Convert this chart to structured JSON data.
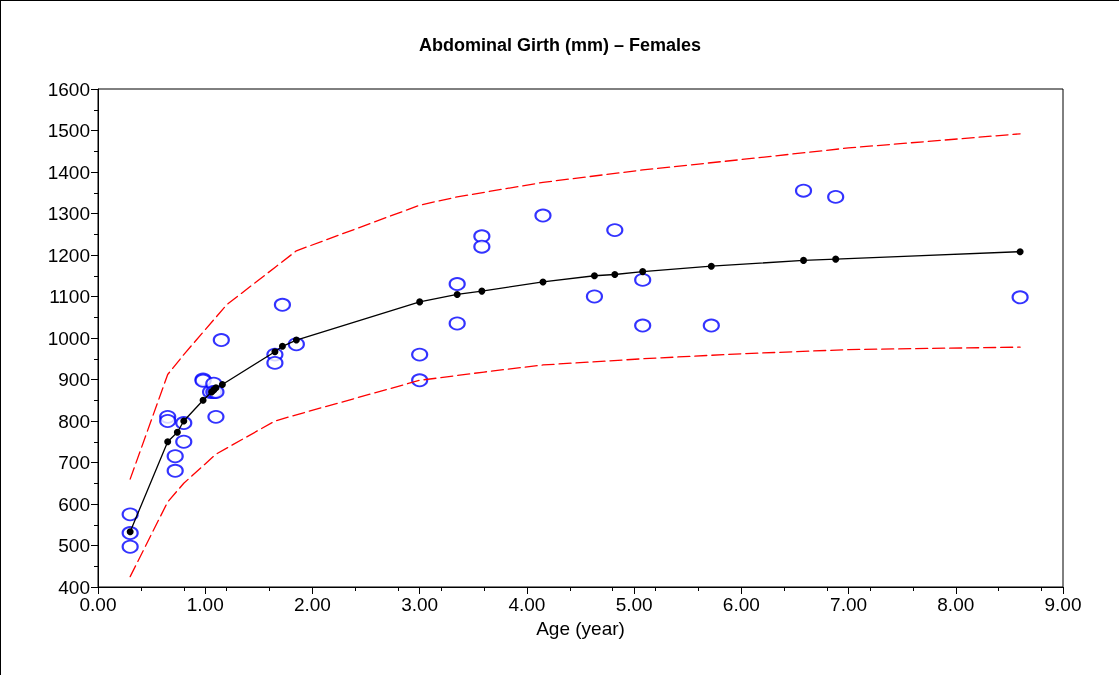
{
  "chart_data": {
    "type": "scatter",
    "title": "Abdominal Girth (mm) – Females",
    "xlabel": "Age (year)",
    "xlim": [
      0,
      9
    ],
    "xticks": [
      {
        "value": 0,
        "label": "0.00"
      },
      {
        "value": 1,
        "label": "1.00"
      },
      {
        "value": 2,
        "label": "2.00"
      },
      {
        "value": 3,
        "label": "3.00"
      },
      {
        "value": 4,
        "label": "4.00"
      },
      {
        "value": 5,
        "label": "5.00"
      },
      {
        "value": 6,
        "label": "6.00"
      },
      {
        "value": 7,
        "label": "7.00"
      },
      {
        "value": 8,
        "label": "8.00"
      },
      {
        "value": 9,
        "label": "9.00"
      }
    ],
    "ylim": [
      400,
      1600
    ],
    "yticks": [
      400,
      500,
      600,
      700,
      800,
      900,
      1000,
      1100,
      1200,
      1300,
      1400,
      1500,
      1600
    ],
    "grid": false,
    "series": [
      {
        "marker": "circle",
        "color": "#0000ff",
        "x": [
          0.3,
          0.3,
          0.3,
          0.65,
          0.65,
          0.72,
          0.72,
          0.8,
          0.8,
          0.98,
          0.98,
          1.05,
          1.08,
          1.08,
          1.1,
          1.1,
          1.15,
          1.65,
          1.65,
          1.72,
          1.85,
          3.0,
          3.0,
          3.35,
          3.35,
          3.58,
          3.58,
          4.15,
          4.63,
          4.82,
          5.08,
          5.08,
          5.72,
          6.58,
          6.88,
          8.6
        ],
        "values": [
          575,
          530,
          497,
          810,
          800,
          715,
          680,
          795,
          750,
          900,
          897,
          870,
          890,
          870,
          870,
          810,
          995,
          960,
          940,
          1080,
          985,
          960,
          898,
          1130,
          1035,
          1245,
          1220,
          1295,
          1100,
          1260,
          1140,
          1030,
          1030,
          1355,
          1340,
          1098
        ]
      },
      {
        "type": "line",
        "marker": "circle",
        "line_style": "solid",
        "color": "#000000",
        "x": [
          0.3,
          0.65,
          0.74,
          0.8,
          0.98,
          1.06,
          1.08,
          1.1,
          1.16,
          1.65,
          1.72,
          1.85,
          3.0,
          3.35,
          3.58,
          4.15,
          4.63,
          4.82,
          5.08,
          5.72,
          6.58,
          6.88,
          8.6
        ],
        "values": [
          533,
          750,
          773,
          800,
          850,
          870,
          875,
          880,
          888,
          967,
          980,
          995,
          1087,
          1105,
          1113,
          1135,
          1150,
          1153,
          1160,
          1173,
          1187,
          1190,
          1208
        ]
      },
      {
        "type": "line",
        "marker": "none",
        "line_style": "dashed",
        "color": "#ff0000",
        "x": [
          0.3,
          0.65,
          0.8,
          1.0,
          1.2,
          1.65,
          1.85,
          3.0,
          3.35,
          4.15,
          5.08,
          6.0,
          7.0,
          8.6
        ],
        "values": [
          660,
          912,
          960,
          1020,
          1080,
          1170,
          1210,
          1320,
          1340,
          1375,
          1405,
          1430,
          1458,
          1492
        ]
      },
      {
        "type": "line",
        "marker": "none",
        "line_style": "dashed",
        "color": "#ff0000",
        "x": [
          0.3,
          0.65,
          0.8,
          1.1,
          1.65,
          1.85,
          3.0,
          3.6,
          4.15,
          5.08,
          6.0,
          7.0,
          8.6
        ],
        "values": [
          425,
          605,
          650,
          720,
          800,
          815,
          898,
          918,
          935,
          950,
          962,
          972,
          978
        ]
      }
    ]
  }
}
